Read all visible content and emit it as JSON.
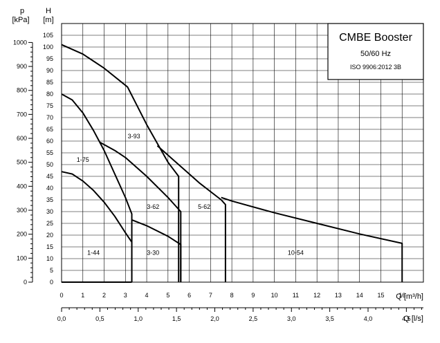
{
  "chart_data": {
    "type": "line",
    "title": "CMBE Booster",
    "subtitle": "50/60 Hz",
    "standard": "ISO 9906:2012 3B",
    "xlabel": "Q [m³/h]",
    "x2label": "Q [l/s]",
    "ylabel_left": "p\n[kPa]",
    "ylabel_left_lines": [
      "p",
      "[kPa]"
    ],
    "ylabel_right_lines": [
      "H",
      "[m]"
    ],
    "xlim": [
      0,
      17
    ],
    "ylim": [
      0,
      110
    ],
    "x_ticks": [
      "0",
      "1",
      "2",
      "3",
      "4",
      "5",
      "6",
      "7",
      "8",
      "9",
      "10",
      "11",
      "12",
      "13",
      "14",
      "15",
      "16"
    ],
    "x2_ticks": [
      "0,0",
      "0,5",
      "1,0",
      "1,5",
      "2,0",
      "2,5",
      "3,0",
      "3,5",
      "4,0",
      "4,5"
    ],
    "h_ticks": [
      "0",
      "5",
      "10",
      "15",
      "20",
      "25",
      "30",
      "35",
      "40",
      "45",
      "50",
      "55",
      "60",
      "65",
      "70",
      "75",
      "80",
      "85",
      "90",
      "95",
      "100",
      "105"
    ],
    "p_ticks": [
      "0",
      "100",
      "200",
      "300",
      "400",
      "500",
      "600",
      "700",
      "800",
      "900",
      "1000"
    ],
    "grid": true,
    "series": [
      {
        "name": "1-44",
        "x": [
          0,
          3.3
        ],
        "y": [
          0,
          0
        ]
      },
      {
        "name": "1-44",
        "x": [
          0,
          0.5,
          1,
          1.5,
          2,
          2.5,
          3,
          3.3,
          3.3
        ],
        "y": [
          47,
          46,
          43,
          39,
          34,
          28,
          21,
          17,
          0
        ]
      },
      {
        "name": "1-75",
        "x": [
          0,
          0.5,
          1,
          1.5,
          2,
          2.5,
          3,
          3.3,
          3.3
        ],
        "y": [
          80,
          77.5,
          72,
          64.5,
          56,
          46,
          36,
          29,
          0
        ]
      },
      {
        "name": "3-30",
        "x": [
          3.3,
          4,
          5,
          5.6,
          5.6
        ],
        "y": [
          26.5,
          24,
          19.5,
          16,
          0
        ]
      },
      {
        "name": "3-62",
        "x": [
          1.8,
          2.5,
          3,
          4,
          5,
          5.6,
          5.6
        ],
        "y": [
          59.5,
          56,
          53,
          45,
          36,
          30,
          0
        ]
      },
      {
        "name": "3-93",
        "x": [
          0,
          1,
          2,
          3.1,
          4,
          5,
          5.5,
          5.5
        ],
        "y": [
          101,
          97,
          91,
          83,
          67,
          51,
          45,
          0
        ]
      },
      {
        "name": "5-62",
        "x": [
          4.5,
          5.5,
          6.5,
          7.5,
          7.7,
          7.7
        ],
        "y": [
          58,
          50,
          42,
          35,
          33,
          0
        ]
      },
      {
        "name": "10-54",
        "x": [
          7.5,
          8,
          10,
          12,
          14,
          16,
          16,
          16
        ],
        "y": [
          36,
          34.5,
          29.5,
          25,
          20.5,
          16.5,
          16.5,
          0
        ]
      }
    ],
    "curve_labels": [
      {
        "text": "1-44",
        "x": 1.5,
        "y": 12.5
      },
      {
        "text": "1-75",
        "x": 1.0,
        "y": 52
      },
      {
        "text": "3-30",
        "x": 4.3,
        "y": 12.5
      },
      {
        "text": "3-62",
        "x": 4.3,
        "y": 32
      },
      {
        "text": "3-93",
        "x": 3.4,
        "y": 62
      },
      {
        "text": "5-62",
        "x": 6.7,
        "y": 32
      },
      {
        "text": "10-54",
        "x": 11.0,
        "y": 12.5
      }
    ]
  }
}
